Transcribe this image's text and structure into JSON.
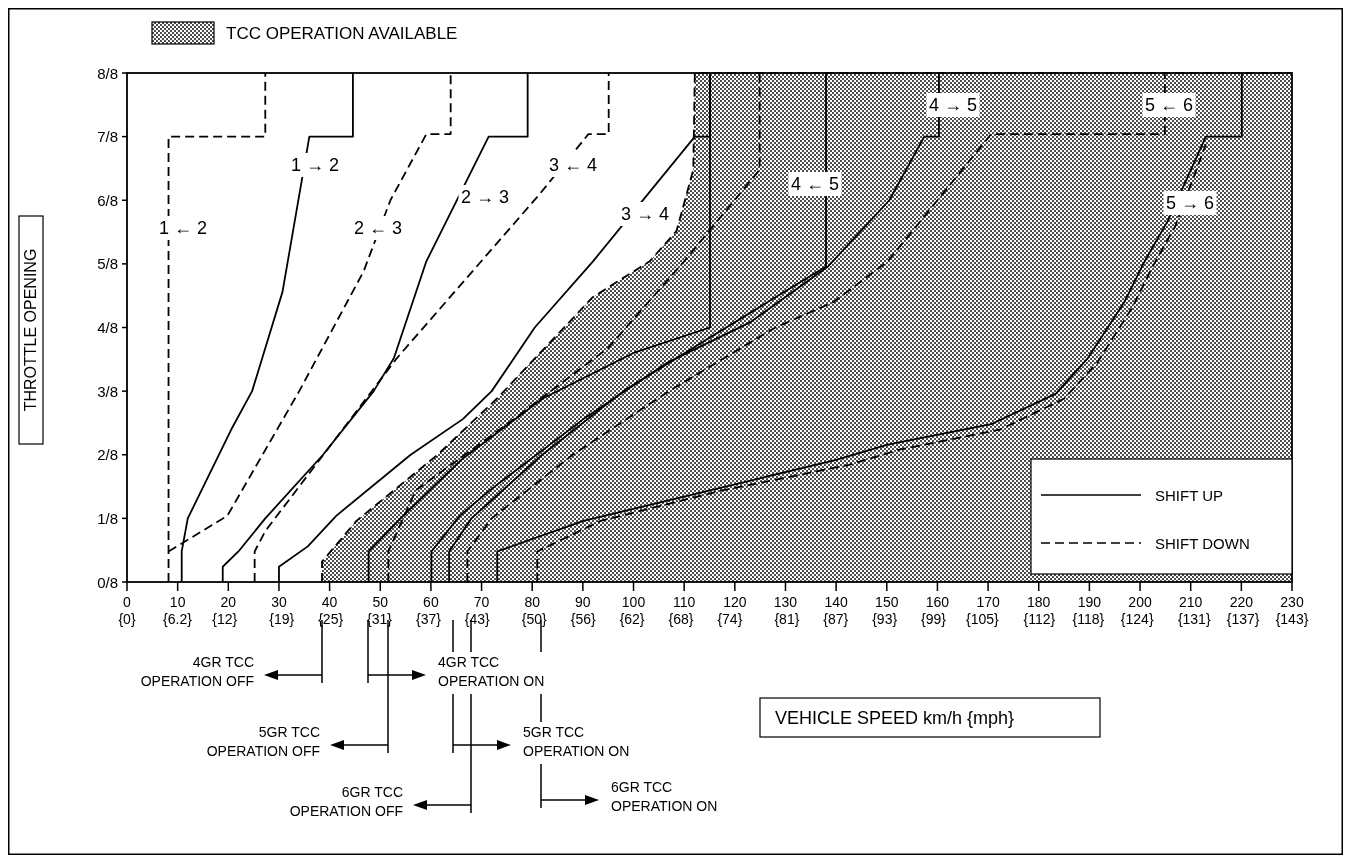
{
  "chart_data": {
    "type": "line",
    "xlabel": "VEHICLE SPEED km/h {mph}",
    "ylabel": "THROTTLE OPENING",
    "xlim": [
      0,
      230
    ],
    "ylim": [
      0,
      1
    ],
    "xticks": [
      0,
      10,
      20,
      30,
      40,
      50,
      60,
      70,
      80,
      90,
      100,
      110,
      120,
      130,
      140,
      150,
      160,
      170,
      180,
      190,
      200,
      210,
      220,
      230
    ],
    "x2lim": [
      0,
      143
    ],
    "x2ticks": [
      {
        "value": 0,
        "label": "{0}"
      },
      {
        "value": 6.2,
        "label": "{6.2}"
      },
      {
        "value": 12,
        "label": "{12}"
      },
      {
        "value": 19,
        "label": "{19}"
      },
      {
        "value": 25,
        "label": "{25}"
      },
      {
        "value": 31,
        "label": "{31}"
      },
      {
        "value": 37,
        "label": "{37}"
      },
      {
        "value": 43,
        "label": "{43}"
      },
      {
        "value": 50,
        "label": "{50}"
      },
      {
        "value": 56,
        "label": "{56}"
      },
      {
        "value": 62,
        "label": "{62}"
      },
      {
        "value": 68,
        "label": "{68}"
      },
      {
        "value": 74,
        "label": "{74}"
      },
      {
        "value": 81,
        "label": "{81}"
      },
      {
        "value": 87,
        "label": "{87}"
      },
      {
        "value": 93,
        "label": "{93}"
      },
      {
        "value": 99,
        "label": "{99}"
      },
      {
        "value": 105,
        "label": "{105}"
      },
      {
        "value": 112,
        "label": "{112}"
      },
      {
        "value": 118,
        "label": "{118}"
      },
      {
        "value": 124,
        "label": "{124}"
      },
      {
        "value": 131,
        "label": "{131}"
      },
      {
        "value": 137,
        "label": "{137}"
      },
      {
        "value": 143,
        "label": "{143}"
      }
    ],
    "yticks": [
      {
        "value": 0,
        "label": "0/8"
      },
      {
        "value": 0.125,
        "label": "1/8"
      },
      {
        "value": 0.25,
        "label": "2/8"
      },
      {
        "value": 0.375,
        "label": "3/8"
      },
      {
        "value": 0.5,
        "label": "4/8"
      },
      {
        "value": 0.625,
        "label": "5/8"
      },
      {
        "value": 0.75,
        "label": "6/8"
      },
      {
        "value": 0.875,
        "label": "7/8"
      },
      {
        "value": 1,
        "label": "8/8"
      }
    ],
    "legend": "bottom right",
    "series": [
      {
        "type": "area",
        "color": "#000000",
        "line_style": "dashed",
        "x": [
          38.5,
          38.5,
          45.3,
          61.3,
          73,
          92,
          103.2,
          108.5,
          111.8,
          112.1,
          230
        ],
        "values": [
          0,
          0.04,
          0.12,
          0.25,
          0.36,
          0.56,
          0.63,
          0.69,
          0.81,
          1,
          1
        ]
      },
      {
        "name": "SHIFT UP",
        "color": "#000000",
        "line_style": "solid",
        "x": [
          10.8,
          10.8,
          12,
          20.6,
          24.7,
          30.7,
          36,
          44.6,
          44.6
        ],
        "values": [
          0,
          0.06,
          0.125,
          0.3,
          0.375,
          0.57,
          0.875,
          0.875,
          1
        ]
      },
      {
        "color": "#000000",
        "line_style": "solid",
        "x": [
          18.9,
          18.9,
          22,
          27.3,
          38.7,
          48.7,
          52.7,
          59.1,
          71.4,
          79.1,
          79.1
        ],
        "values": [
          0,
          0.03,
          0.06,
          0.125,
          0.25,
          0.375,
          0.44,
          0.63,
          0.875,
          0.875,
          1
        ]
      },
      {
        "color": "#000000",
        "line_style": "solid",
        "x": [
          30,
          30,
          35.7,
          41.3,
          56,
          66.3,
          72,
          80.5,
          92,
          112.1,
          115.1,
          115.1
        ],
        "values": [
          0,
          0.03,
          0.07,
          0.13,
          0.25,
          0.32,
          0.375,
          0.5,
          0.63,
          0.875,
          0.875,
          1
        ]
      },
      {
        "color": "#000000",
        "line_style": "solid",
        "x": [
          47.7,
          47.7,
          54,
          66,
          82,
          100,
          115.1,
          115.1
        ],
        "values": [
          0,
          0.06,
          0.125,
          0.24,
          0.36,
          0.45,
          0.5,
          1
        ]
      },
      {
        "color": "#000000",
        "line_style": "solid",
        "x": [
          60.1,
          60.1,
          65.7,
          71.6,
          90.1,
          106.5,
          123,
          138.4,
          150.5,
          157.4,
          160.3,
          160.3
        ],
        "values": [
          0,
          0.06,
          0.13,
          0.18,
          0.32,
          0.43,
          0.51,
          0.62,
          0.75,
          0.875,
          0.875,
          1
        ]
      },
      {
        "color": "#000000",
        "line_style": "solid",
        "x": [
          63.6,
          63.6,
          68,
          82,
          98,
          115,
          138,
          138
        ],
        "values": [
          0,
          0.06,
          0.125,
          0.25,
          0.375,
          0.48,
          0.62,
          1
        ]
      },
      {
        "color": "#000000",
        "line_style": "solid",
        "x": [
          73.1,
          73.1,
          90.1,
          115.1,
          140,
          150.2,
          170.6,
          183.4,
          189.7,
          196.9,
          200.9,
          205.5,
          213,
          220.1,
          220.1
        ],
        "values": [
          0,
          0.06,
          0.12,
          0.18,
          0.24,
          0.27,
          0.31,
          0.37,
          0.44,
          0.55,
          0.63,
          0.71,
          0.875,
          0.875,
          1
        ]
      },
      {
        "name": "SHIFT DOWN",
        "color": "#000000",
        "line_style": "dashed",
        "x": [
          8.2,
          8.2,
          27.3,
          27.3
        ],
        "values": [
          0,
          0.875,
          0.875,
          1
        ]
      },
      {
        "color": "#000000",
        "line_style": "dashed",
        "x": [
          8.2,
          19.8,
          34,
          46.7,
          52,
          59.1,
          63.9,
          63.9
        ],
        "values": [
          0.06,
          0.13,
          0.375,
          0.61,
          0.75,
          0.88,
          0.88,
          1
        ]
      },
      {
        "color": "#000000",
        "line_style": "dashed",
        "x": [
          25.2,
          25.2,
          27.3,
          53.3,
          81.3,
          91.1,
          95.1,
          95.1
        ],
        "values": [
          0,
          0.06,
          0.1,
          0.44,
          0.76,
          0.88,
          0.88,
          1
        ]
      },
      {
        "color": "#000000",
        "line_style": "dashed",
        "x": [
          51.6,
          51.6,
          57,
          75,
          95,
          110,
          124.9,
          124.9
        ],
        "values": [
          0,
          0.06,
          0.18,
          0.31,
          0.46,
          0.63,
          0.81,
          1
        ]
      },
      {
        "color": "#000000",
        "line_style": "dashed",
        "x": [
          67.2,
          67.2,
          72,
          88,
          107,
          128,
          139.5,
          150.2,
          160,
          170.6,
          204.9,
          204.9
        ],
        "values": [
          0,
          0.06,
          0.125,
          0.25,
          0.375,
          0.5,
          0.55,
          0.63,
          0.75,
          0.88,
          0.88,
          1
        ]
      },
      {
        "color": "#000000",
        "line_style": "dashed",
        "x": [
          81,
          81,
          93.5,
          117.5,
          142.5,
          152.5,
          172.5,
          185,
          191.5,
          198.5,
          202.5,
          207,
          213
        ],
        "values": [
          0,
          0.06,
          0.12,
          0.18,
          0.23,
          0.26,
          0.3,
          0.36,
          0.43,
          0.54,
          0.62,
          0.7,
          0.86
        ]
      }
    ],
    "annotations": [
      "1 ← 2",
      "1 → 2",
      "2 ← 3",
      "2 → 3",
      "3 ← 4",
      "3 → 4",
      "4 ← 5",
      "4 → 5",
      "5 ← 6",
      "5 → 6",
      "4GR TCC OPERATION OFF",
      "4GR TCC OPERATION ON",
      "5GR TCC OPERATION OFF",
      "5GR TCC OPERATION ON",
      "6GR TCC OPERATION OFF",
      "6GR TCC OPERATION ON",
      "TCC OPERATION AVAILABLE"
    ]
  }
}
